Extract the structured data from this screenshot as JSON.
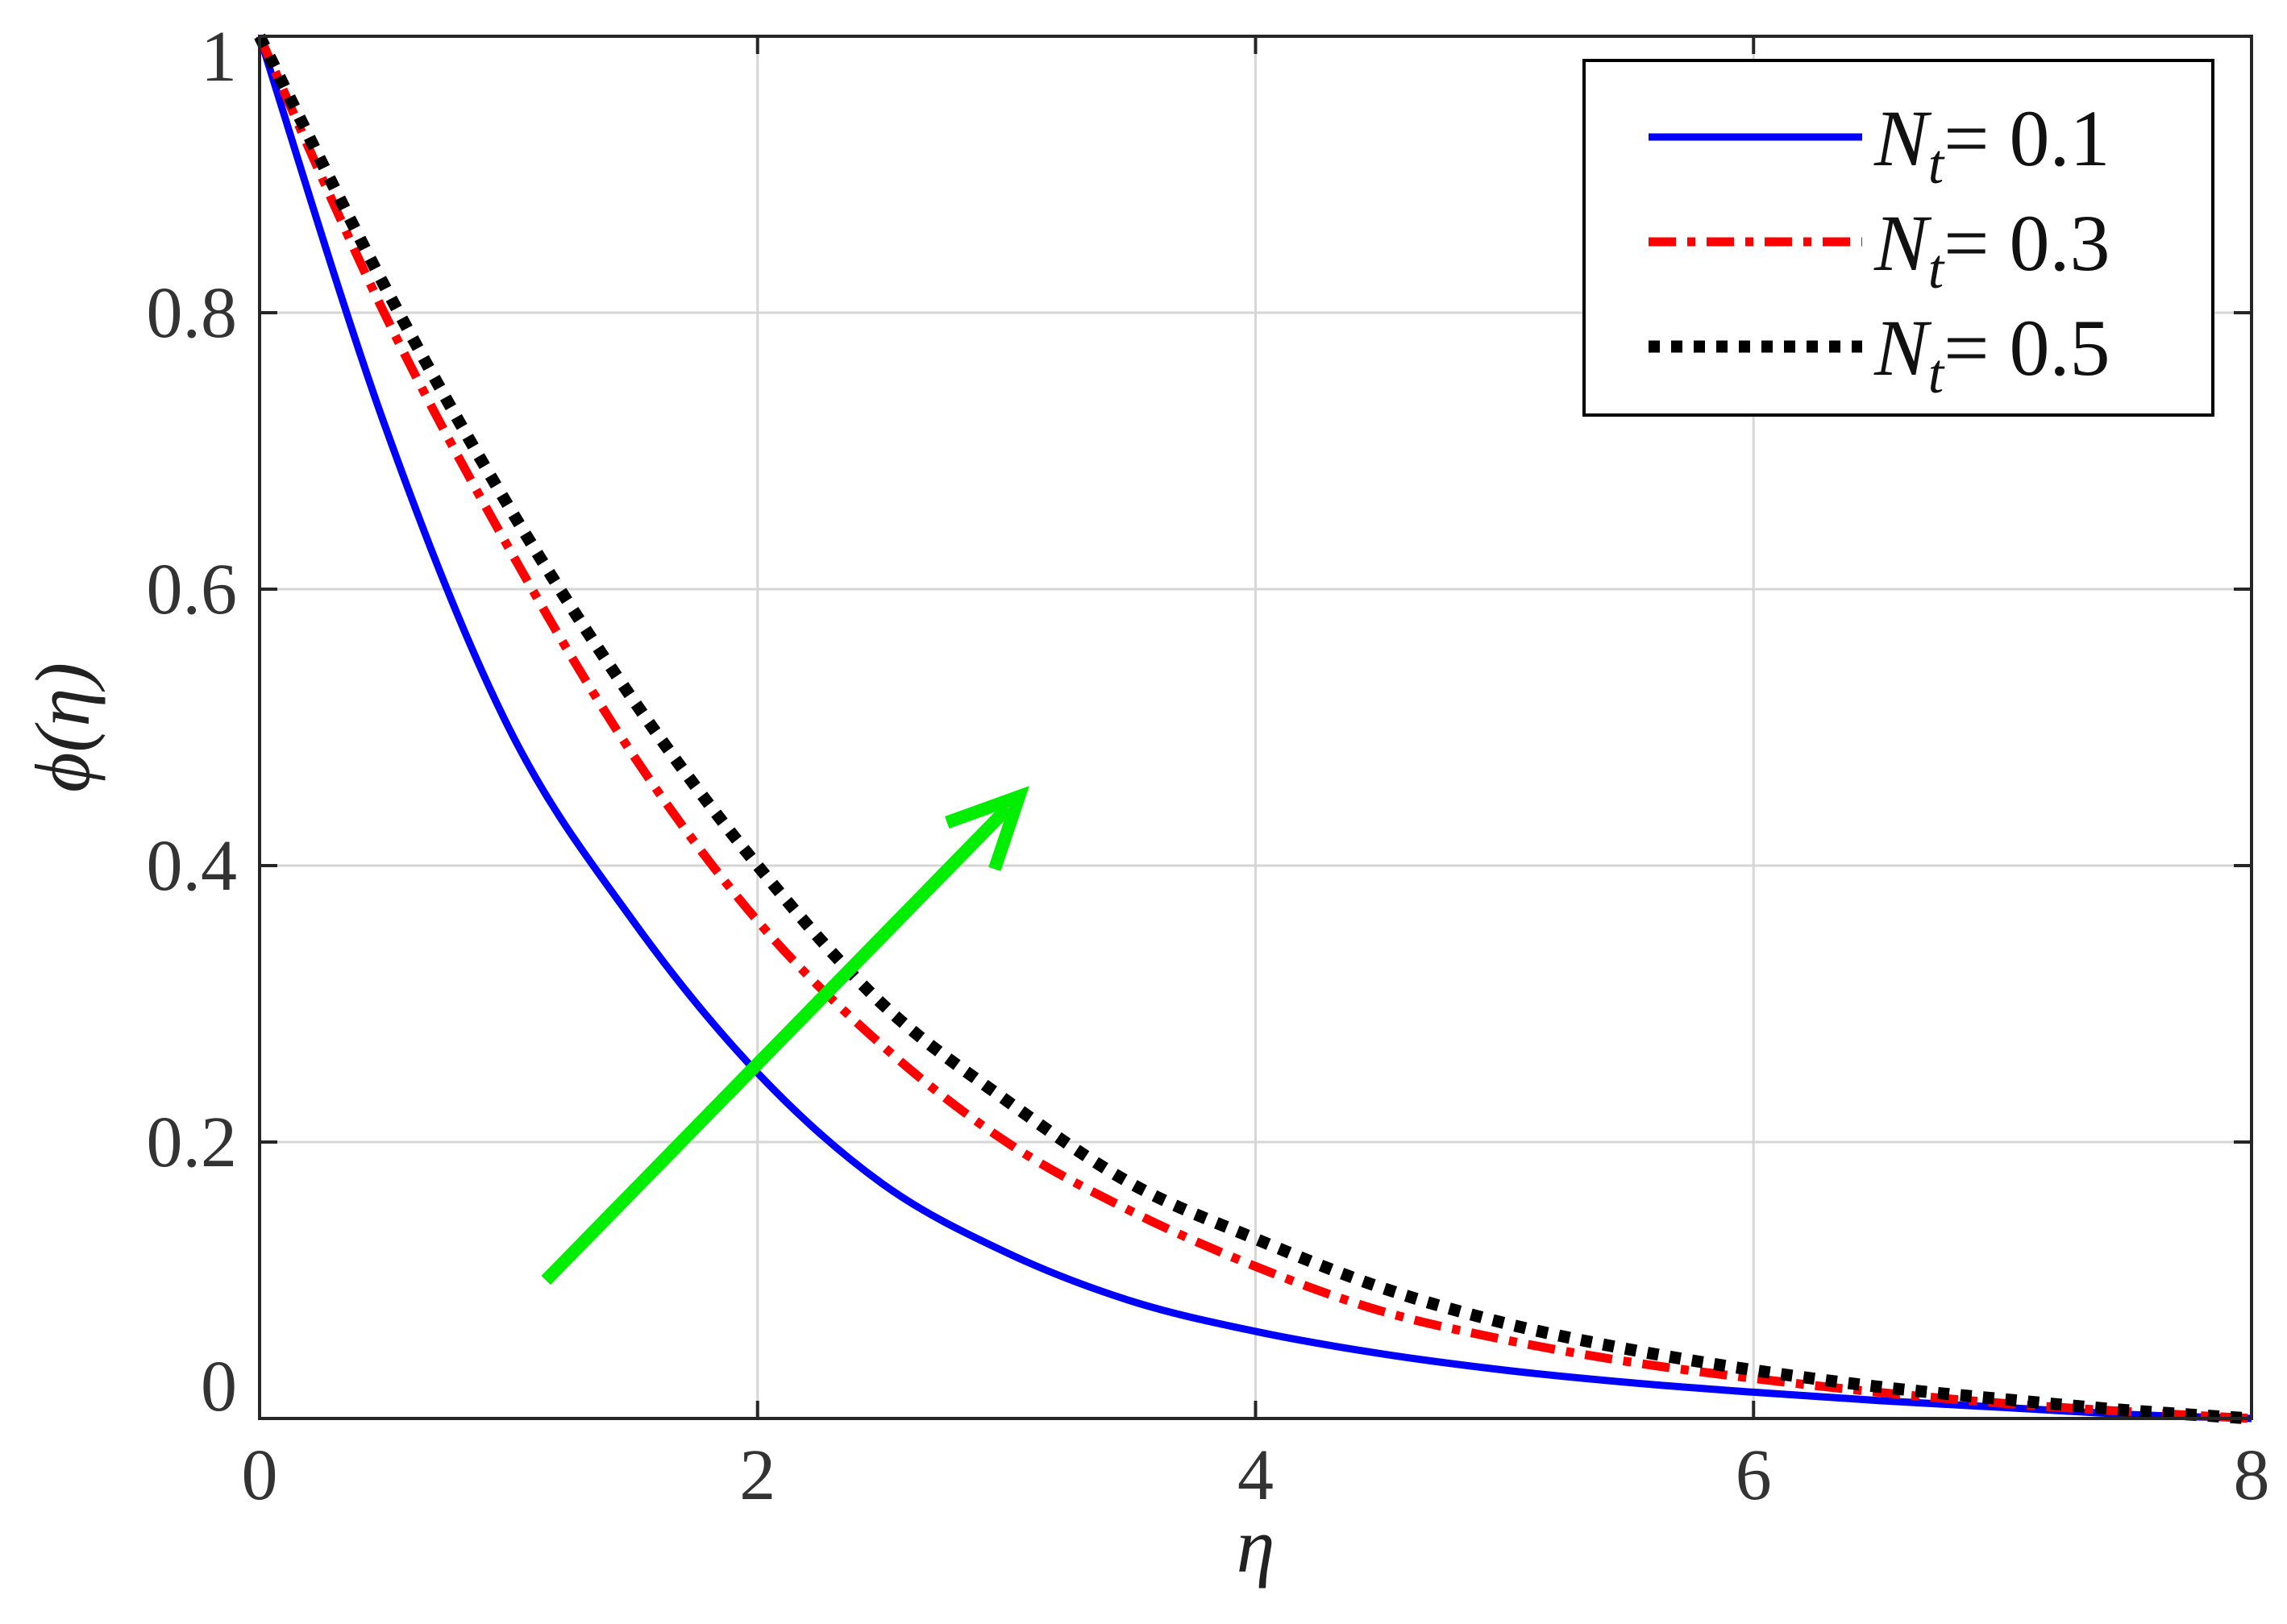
{
  "chart_data": {
    "type": "line",
    "xlabel": "η",
    "ylabel": "ϕ(η)",
    "xlim": [
      0,
      8
    ],
    "ylim": [
      0,
      1
    ],
    "xticks": [
      0,
      2,
      4,
      6,
      8
    ],
    "yticks": [
      0,
      0.2,
      0.4,
      0.6,
      0.8,
      1
    ],
    "xtick_labels": [
      "0",
      "2",
      "4",
      "6",
      "8"
    ],
    "ytick_labels": [
      "0",
      "0.2",
      "0.4",
      "0.6",
      "0.8",
      "1"
    ],
    "grid": true,
    "legend_position": "top-right",
    "series": [
      {
        "name": "Nt= 0.1",
        "color": "#0000ff",
        "style": "solid",
        "x": [
          0,
          0.5,
          1,
          1.5,
          2,
          2.5,
          3,
          3.5,
          4,
          4.5,
          5,
          5.5,
          6,
          6.5,
          7,
          7.5,
          8
        ],
        "y": [
          1,
          0.72,
          0.5,
          0.36,
          0.25,
          0.17,
          0.12,
          0.085,
          0.063,
          0.047,
          0.035,
          0.026,
          0.019,
          0.013,
          0.008,
          0.003,
          0.0
        ]
      },
      {
        "name": "Nt= 0.3",
        "color": "#ff0000",
        "style": "dashdot",
        "x": [
          0,
          0.5,
          1,
          1.5,
          2,
          2.5,
          3,
          3.5,
          4,
          4.5,
          5,
          5.5,
          6,
          6.5,
          7,
          7.5,
          8
        ],
        "y": [
          1,
          0.8,
          0.63,
          0.48,
          0.36,
          0.27,
          0.2,
          0.15,
          0.11,
          0.078,
          0.057,
          0.041,
          0.029,
          0.019,
          0.011,
          0.005,
          0.0
        ]
      },
      {
        "name": "Nt= 0.5",
        "color": "#000000",
        "style": "dotted",
        "x": [
          0,
          0.5,
          1,
          1.5,
          2,
          2.5,
          3,
          3.5,
          4,
          4.5,
          5,
          5.5,
          6,
          6.5,
          7,
          7.5,
          8
        ],
        "y": [
          1,
          0.82,
          0.66,
          0.52,
          0.4,
          0.3,
          0.23,
          0.17,
          0.13,
          0.095,
          0.069,
          0.05,
          0.035,
          0.023,
          0.014,
          0.006,
          0.0
        ]
      }
    ],
    "annotations": [
      {
        "type": "arrow",
        "color": "#00ee00",
        "from": [
          1.15,
          0.1
        ],
        "to": [
          3.05,
          0.45
        ]
      }
    ]
  },
  "legend": {
    "items": [
      {
        "prefix": "N",
        "sub": "t",
        "suffix": "= 0.1"
      },
      {
        "prefix": "N",
        "sub": "t",
        "suffix": "= 0.3"
      },
      {
        "prefix": "N",
        "sub": "t",
        "suffix": "= 0.5"
      }
    ]
  }
}
